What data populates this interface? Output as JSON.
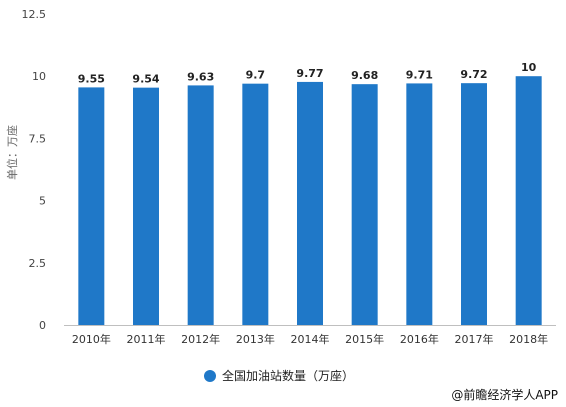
{
  "chart_data": {
    "type": "bar",
    "title": "",
    "xlabel": "",
    "ylabel": "单位：万座",
    "categories": [
      "2010年",
      "2011年",
      "2012年",
      "2013年",
      "2014年",
      "2015年",
      "2016年",
      "2017年",
      "2018年"
    ],
    "series": [
      {
        "name": "全国加油站数量（万座）",
        "values": [
          9.55,
          9.54,
          9.63,
          9.7,
          9.77,
          9.68,
          9.71,
          9.72,
          10
        ]
      }
    ],
    "data_labels": [
      "9.55",
      "9.54",
      "9.63",
      "9.7",
      "9.77",
      "9.68",
      "9.71",
      "9.72",
      "10"
    ],
    "ylim": [
      0,
      12.5
    ],
    "yticks": [
      "0",
      "2.5",
      "5",
      "7.5",
      "10",
      "12.5"
    ],
    "grid": false,
    "legend_position": "bottom-center",
    "bar_color": "#1f78c8"
  },
  "credit": "@前瞻经济学人APP"
}
